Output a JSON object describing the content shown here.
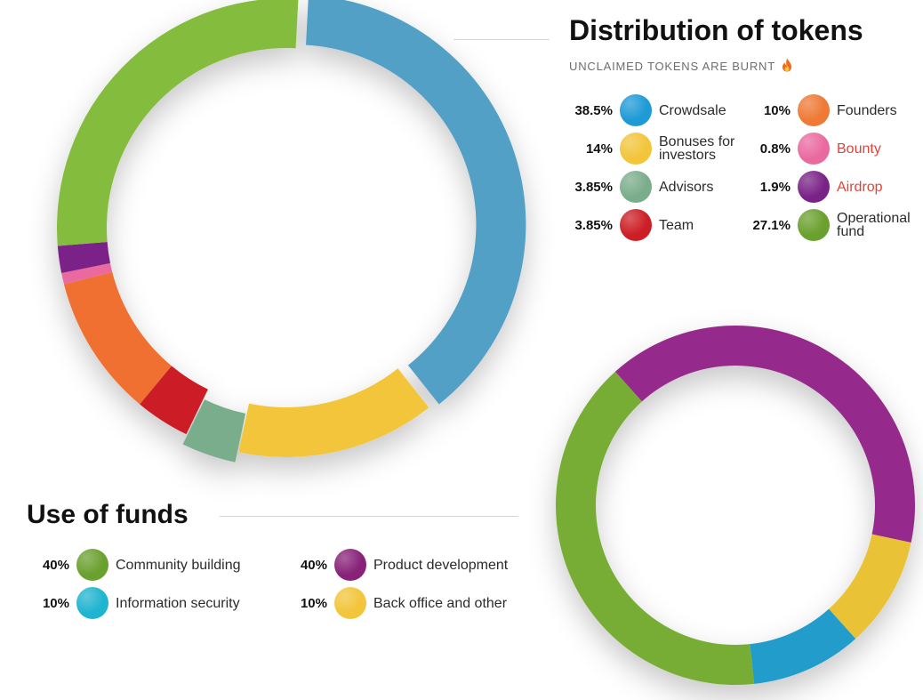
{
  "chart_data": [
    {
      "type": "pie",
      "variant": "donut",
      "title": "Distribution of tokens",
      "subtitle": "UNCLAIMED TOKENS ARE BURNT",
      "subtitle_icon": "fire-icon",
      "slices": [
        {
          "label": "Crowdsale",
          "value": 38.5,
          "display": "38.5%",
          "color": "#52a0c6",
          "legend_color": "#1e9ad6"
        },
        {
          "label": "Bonuses for investors",
          "value": 14,
          "display": "14%",
          "color": "#f2c53a",
          "legend_color": "#f2c53a"
        },
        {
          "label": "Advisors",
          "value": 3.85,
          "display": "3.85%",
          "color": "#7aad8b",
          "legend_color": "#7aad8b"
        },
        {
          "label": "Team",
          "value": 3.85,
          "display": "3.85%",
          "color": "#cc1e25",
          "legend_color": "#cc1e25"
        },
        {
          "label": "Founders",
          "value": 10,
          "display": "10%",
          "color": "#f07030",
          "legend_color": "#ee7a36"
        },
        {
          "label": "Bounty",
          "value": 0.8,
          "display": "0.8%",
          "color": "#ea6aa0",
          "legend_color": "#ea6aa0",
          "label_color": "#e0433a"
        },
        {
          "label": "Airdrop",
          "value": 1.9,
          "display": "1.9%",
          "color": "#7a2387",
          "legend_color": "#7a2387",
          "label_color": "#e0433a"
        },
        {
          "label": "Operational fund",
          "value": 27.1,
          "display": "27.1%",
          "color": "#84bc3c",
          "legend_color": "#6aa02e"
        }
      ],
      "legend_order": [
        "Crowdsale",
        "Founders",
        "Bonuses for investors",
        "Bounty",
        "Advisors",
        "Airdrop",
        "Team",
        "Operational fund"
      ],
      "legend_placement": "right"
    },
    {
      "type": "pie",
      "variant": "donut",
      "title": "Use of funds",
      "slices": [
        {
          "label": "Product development",
          "value": 40,
          "display": "40%",
          "color": "#962a8c",
          "legend_color": "#882279"
        },
        {
          "label": "Back office and other",
          "value": 10,
          "display": "10%",
          "color": "#e9c236",
          "legend_color": "#f2c53a"
        },
        {
          "label": "Information security",
          "value": 10,
          "display": "10%",
          "color": "#219cca",
          "legend_color": "#1fb4d0"
        },
        {
          "label": "Community building",
          "value": 40,
          "display": "40%",
          "color": "#77ad36",
          "legend_color": "#6aa02e"
        }
      ],
      "legend_order": [
        "Community building",
        "Product development",
        "Information security",
        "Back office and other"
      ],
      "legend_placement": "left"
    }
  ]
}
